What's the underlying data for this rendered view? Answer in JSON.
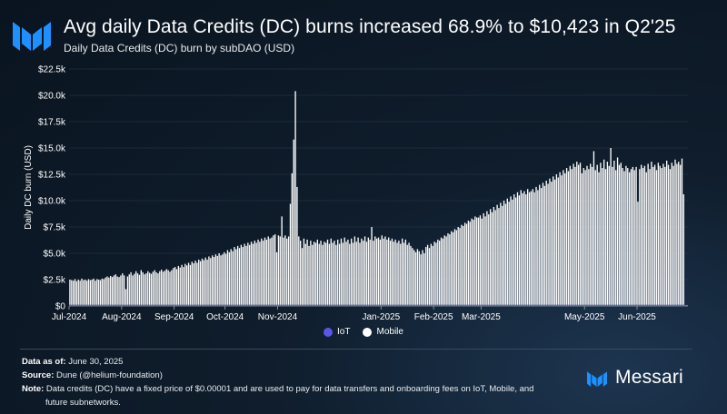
{
  "header": {
    "title": "Avg daily Data Credits (DC) burns increased 68.9% to $10,423 in Q2'25",
    "subtitle": "Daily Data Credits (DC) burn by subDAO (USD)"
  },
  "colors": {
    "mobile": "#ffffff",
    "iot": "#5a57e8",
    "brand_blue": "#1e90ff",
    "grid": "#2a3a4c",
    "axis_text": "#ffffff"
  },
  "icons": {
    "logo": "messari-logo-icon",
    "brand": "messari-mark-icon"
  },
  "legend": {
    "iot_label": "IoT",
    "mobile_label": "Mobile"
  },
  "footer": {
    "data_as_of_label": "Data as of:",
    "data_as_of_value": "June 30, 2025",
    "source_label": "Source:",
    "source_value": "Dune (@helium-foundation)",
    "note_label": "Note:",
    "note_value": "Data credits (DC) have a fixed price of $0.00001 and are used to pay for data transfers and onboarding fees on IoT, Mobile, and",
    "note_value_cont": "future subnetworks."
  },
  "brand": {
    "name": "Messari"
  },
  "chart_data": {
    "type": "bar",
    "stacked": true,
    "ylabel": "Daily DC burn (USD)",
    "ylim": [
      0,
      22500
    ],
    "yticks": [
      0,
      2500,
      5000,
      7500,
      10000,
      12500,
      15000,
      17500,
      20000,
      22500
    ],
    "ytick_labels": [
      "$0",
      "$2.5k",
      "$5.0k",
      "$7.5k",
      "$10.0k",
      "$12.5k",
      "$15.0k",
      "$17.5k",
      "$20.0k",
      "$22.5k"
    ],
    "x_start": "2024-07-01",
    "x_end": "2025-06-30",
    "xticks": [
      {
        "date": "2024-07-01",
        "label": "Jul-2024"
      },
      {
        "date": "2024-08-01",
        "label": "Aug-2024"
      },
      {
        "date": "2024-09-01",
        "label": "Sep-2024"
      },
      {
        "date": "2024-10-01",
        "label": "Oct-2024"
      },
      {
        "date": "2024-11-01",
        "label": "Nov-2024"
      },
      {
        "date": "2025-01-01",
        "label": "Jan-2025"
      },
      {
        "date": "2025-02-01",
        "label": "Feb-2025"
      },
      {
        "date": "2025-03-01",
        "label": "Mar-2025"
      },
      {
        "date": "2025-05-01",
        "label": "May-2025"
      },
      {
        "date": "2025-06-01",
        "label": "Jun-2025"
      }
    ],
    "grid": true,
    "legend_position": "bottom-center",
    "series": [
      {
        "name": "IoT",
        "values": [
          100,
          100,
          100,
          100,
          100,
          100,
          100,
          100,
          100,
          100,
          100,
          100,
          100,
          100,
          100,
          100,
          100,
          100,
          100,
          100,
          100,
          100,
          100,
          100,
          100,
          100,
          100,
          100,
          100,
          100,
          100,
          100,
          100,
          100,
          100,
          100,
          100,
          100,
          100,
          100,
          100,
          100,
          100,
          100,
          100,
          100,
          100,
          100,
          100,
          100,
          100,
          100,
          100,
          100,
          100,
          100,
          100,
          100,
          100,
          100,
          100,
          100,
          100,
          100,
          100,
          100,
          100,
          100,
          100,
          100,
          100,
          100,
          100,
          100,
          100,
          100,
          100,
          100,
          100,
          100,
          100,
          100,
          100,
          100,
          100,
          100,
          100,
          100,
          100,
          100,
          100,
          100,
          100,
          100,
          100,
          100,
          100,
          100,
          100,
          100,
          100,
          100,
          100,
          100,
          100,
          100,
          100,
          100,
          100,
          100,
          100,
          100,
          100,
          100,
          100,
          100,
          100,
          100,
          100,
          100,
          100,
          100,
          100,
          100,
          100,
          100,
          100,
          100,
          100,
          100,
          100,
          100,
          100,
          100,
          100,
          100,
          100,
          100,
          100,
          100,
          100,
          100,
          100,
          100,
          100,
          100,
          100,
          100,
          100,
          100,
          100,
          100,
          100,
          100,
          100,
          100,
          100,
          100,
          100,
          100,
          100,
          100,
          100,
          100,
          100,
          100,
          100,
          100,
          100,
          100,
          100,
          100,
          100,
          100,
          100,
          100,
          100,
          100,
          100,
          100,
          100,
          100,
          100,
          100,
          100,
          100,
          100,
          100,
          100,
          100,
          100,
          100,
          100,
          100,
          100,
          100,
          100,
          100,
          100,
          100,
          100,
          100,
          100,
          100,
          100,
          100,
          100,
          100,
          100,
          100,
          100,
          100,
          100,
          100,
          100,
          100,
          100,
          100,
          100,
          100,
          100,
          100,
          100,
          100,
          100,
          100,
          100,
          100,
          100,
          100,
          100,
          100,
          100,
          100,
          100,
          100,
          100,
          100,
          100,
          100,
          100,
          100,
          100,
          100,
          100,
          100,
          100,
          100,
          100,
          100,
          100,
          100,
          100,
          100,
          100,
          100,
          100,
          100,
          100,
          100,
          100,
          100,
          100,
          100,
          100,
          100,
          100,
          100,
          100,
          100,
          100,
          100,
          100,
          100,
          100,
          100,
          100,
          100,
          100,
          100,
          100,
          100,
          100,
          100,
          100,
          100,
          100,
          100,
          100,
          100,
          100,
          100,
          100,
          100,
          100,
          100,
          100,
          100,
          100,
          100,
          100,
          100,
          100,
          100,
          100,
          100,
          100,
          100,
          100,
          100,
          100,
          100,
          100,
          100,
          100,
          100,
          100,
          100,
          100,
          100,
          100,
          100,
          100,
          100,
          100,
          100,
          100,
          100,
          100,
          100,
          100,
          100,
          100,
          100,
          100,
          100,
          100,
          100,
          100,
          100,
          100,
          100,
          100,
          100,
          100,
          100,
          100,
          100,
          100,
          100,
          100,
          100,
          100,
          100,
          100,
          100,
          100,
          100,
          100,
          100,
          100,
          100,
          100,
          100,
          100
        ]
      },
      {
        "name": "Mobile",
        "values": [
          2400,
          2350,
          2300,
          2450,
          2250,
          2400,
          2300,
          2500,
          2350,
          2400,
          2300,
          2450,
          2350,
          2400,
          2500,
          2300,
          2450,
          2400,
          2350,
          2500,
          2450,
          2600,
          2700,
          2600,
          2750,
          2650,
          2800,
          2900,
          2700,
          2650,
          2800,
          3000,
          2800,
          1500,
          2700,
          2900,
          3100,
          2800,
          2950,
          3200,
          3000,
          2850,
          3300,
          3100,
          2900,
          3000,
          3200,
          3050,
          2950,
          3150,
          3300,
          3100,
          3000,
          3200,
          3350,
          3150,
          3250,
          3400,
          3300,
          3150,
          3300,
          3500,
          3600,
          3400,
          3700,
          3550,
          3800,
          3600,
          3900,
          3750,
          4000,
          3800,
          4100,
          3950,
          4200,
          4000,
          4300,
          4150,
          4400,
          4250,
          4500,
          4300,
          4600,
          4450,
          4700,
          4550,
          4800,
          4650,
          4900,
          4700,
          4800,
          5000,
          4850,
          5200,
          5000,
          5300,
          5100,
          5500,
          5300,
          5600,
          5400,
          5700,
          5500,
          5800,
          5600,
          5900,
          5700,
          6000,
          5800,
          6100,
          5900,
          6200,
          6000,
          6300,
          6100,
          6400,
          6200,
          6500,
          6300,
          6400,
          6600,
          6700,
          5000,
          6600,
          6500,
          8400,
          6400,
          6600,
          6300,
          6500,
          9600,
          12500,
          15700,
          20300,
          11200,
          6500,
          6100,
          5400,
          6300,
          5800,
          6200,
          5600,
          6100,
          5700,
          6000,
          5900,
          6200,
          5800,
          6100,
          5700,
          6000,
          5900,
          6200,
          5800,
          6300,
          5900,
          6100,
          5700,
          6200,
          5800,
          6300,
          5900,
          6400,
          6000,
          6200,
          5800,
          6300,
          5900,
          6500,
          6000,
          6400,
          5900,
          6300,
          6100,
          6500,
          6000,
          6400,
          6200,
          7400,
          6100,
          6500,
          6300,
          6400,
          6200,
          6600,
          6300,
          6500,
          6200,
          6400,
          6100,
          6300,
          6000,
          6200,
          5900,
          6100,
          5800,
          6300,
          5900,
          6200,
          5700,
          5900,
          5600,
          5400,
          5200,
          5000,
          5300,
          5100,
          4800,
          5200,
          4900,
          5500,
          5700,
          5400,
          5800,
          5600,
          6000,
          5900,
          6200,
          6100,
          6400,
          6300,
          6600,
          6500,
          6800,
          6700,
          7000,
          6900,
          7200,
          7100,
          7400,
          7300,
          7600,
          7500,
          7800,
          7700,
          8000,
          7900,
          8200,
          8100,
          8400,
          8300,
          8300,
          8500,
          8200,
          8700,
          8400,
          8900,
          8600,
          9100,
          8800,
          9300,
          9000,
          9500,
          9200,
          9700,
          9400,
          9900,
          9600,
          10100,
          9800,
          10300,
          10000,
          10500,
          10200,
          10700,
          10400,
          10900,
          10600,
          10800,
          10500,
          11000,
          10700,
          10800,
          11000,
          10700,
          11200,
          10900,
          11400,
          11100,
          11600,
          11300,
          11800,
          11500,
          12000,
          11700,
          12200,
          11900,
          12400,
          12100,
          12600,
          12300,
          12800,
          12500,
          13000,
          12700,
          13200,
          12900,
          13400,
          13100,
          13600,
          13300,
          13500,
          12500,
          13000,
          12800,
          13200,
          12900,
          13400,
          13100,
          14600,
          12800,
          13300,
          12600,
          13500,
          13000,
          13800,
          12900,
          13600,
          13200,
          14900,
          13100,
          13700,
          12800,
          14000,
          13300,
          13500,
          13000,
          12700,
          13200,
          13000,
          12600,
          12900,
          13100,
          12800,
          13100,
          9800,
          12900,
          13300,
          13000,
          13200,
          12600,
          13400,
          12900,
          13600,
          13100,
          13300,
          12800,
          13500,
          13200,
          13000,
          13400,
          13100,
          13700,
          13300,
          12900,
          13500,
          13200,
          13800,
          13400,
          13600,
          13300,
          13900,
          10500
        ]
      }
    ]
  }
}
